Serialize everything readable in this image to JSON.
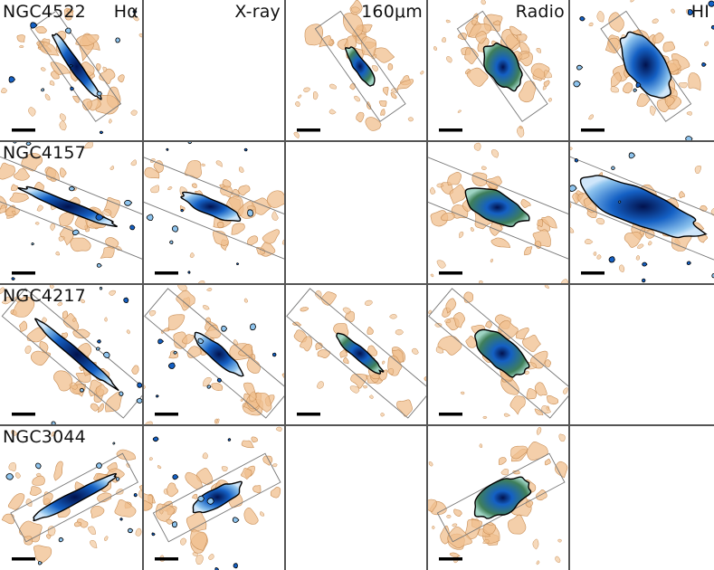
{
  "bands": [
    "Hα",
    "X-ray",
    "160μm",
    "Radio",
    "HI"
  ],
  "colors": {
    "optical_contour_fill": "#f0bf8e",
    "optical_contour_line": "#c98f57",
    "emission_dark": "#02124d",
    "emission_mid": "#1460c4",
    "emission_light": "#8ec4ee",
    "emission_green": "#3f7f5a",
    "grid_line": "#555555"
  },
  "rows": [
    {
      "galaxy": "NGC4522",
      "panels": [
        {
          "band": "Hα",
          "present": true,
          "show_band_label": true,
          "icon": "halpha-emission-map"
        },
        {
          "band": "X-ray",
          "present": false,
          "show_band_label": true
        },
        {
          "band": "160μm",
          "present": true,
          "show_band_label": true,
          "icon": "far-infrared-emission-map"
        },
        {
          "band": "Radio",
          "present": true,
          "show_band_label": true,
          "icon": "radio-emission-map"
        },
        {
          "band": "HI",
          "present": true,
          "show_band_label": true,
          "icon": "hi-emission-map"
        }
      ]
    },
    {
      "galaxy": "NGC4157",
      "panels": [
        {
          "band": "Hα",
          "present": true,
          "icon": "halpha-emission-map"
        },
        {
          "band": "X-ray",
          "present": true,
          "icon": "xray-emission-map"
        },
        {
          "band": "160μm",
          "present": false
        },
        {
          "band": "Radio",
          "present": true,
          "icon": "radio-emission-map"
        },
        {
          "band": "HI",
          "present": true,
          "icon": "hi-emission-map"
        }
      ]
    },
    {
      "galaxy": "NGC4217",
      "panels": [
        {
          "band": "Hα",
          "present": true,
          "icon": "halpha-emission-map"
        },
        {
          "band": "X-ray",
          "present": true,
          "icon": "xray-emission-map"
        },
        {
          "band": "160μm",
          "present": true,
          "icon": "far-infrared-emission-map"
        },
        {
          "band": "Radio",
          "present": true,
          "icon": "radio-emission-map"
        },
        {
          "band": "HI",
          "present": false
        }
      ]
    },
    {
      "galaxy": "NGC3044",
      "panels": [
        {
          "band": "Hα",
          "present": true,
          "icon": "halpha-emission-map"
        },
        {
          "band": "X-ray",
          "present": true,
          "icon": "xray-emission-map"
        },
        {
          "band": "160μm",
          "present": false
        },
        {
          "band": "Radio",
          "present": true,
          "icon": "radio-emission-map"
        },
        {
          "band": "HI",
          "present": false
        }
      ]
    }
  ]
}
